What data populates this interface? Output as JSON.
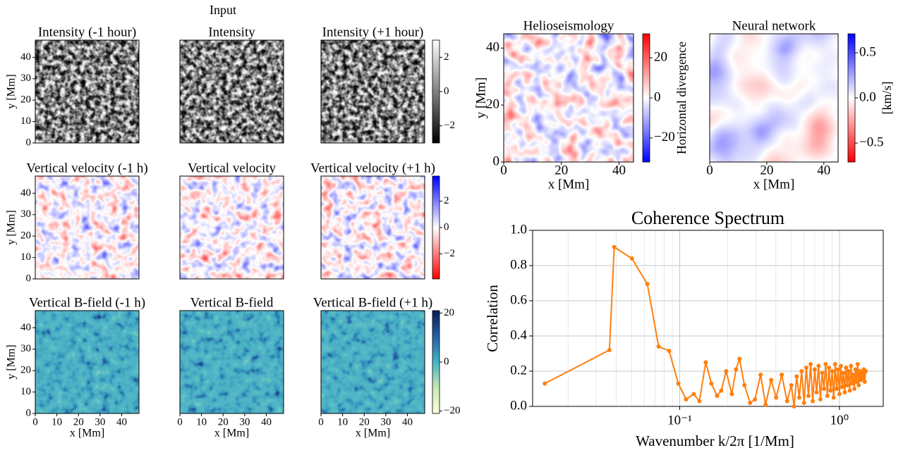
{
  "suptitle": "Input",
  "chart_data": [
    {
      "type": "heatmap",
      "title": "Intensity (-1 hour)",
      "xlim": [
        0,
        48
      ],
      "ylim": [
        0,
        48
      ],
      "yticks": [
        0,
        10,
        20,
        30,
        40
      ],
      "ylabel": "y [Mm]",
      "colormap": "gray"
    },
    {
      "type": "heatmap",
      "title": "Intensity",
      "xlim": [
        0,
        48
      ],
      "ylim": [
        0,
        48
      ],
      "colormap": "gray"
    },
    {
      "type": "heatmap",
      "title": "Intensity (+1 hour)",
      "xlim": [
        0,
        48
      ],
      "ylim": [
        0,
        48
      ],
      "colormap": "gray",
      "clim": [
        -3,
        3
      ],
      "cticks": [
        2,
        0,
        {
          "value": -2,
          "label": "−2"
        }
      ]
    },
    {
      "type": "heatmap",
      "title": "Vertical velocity (-1 h)",
      "xlim": [
        0,
        48
      ],
      "ylim": [
        0,
        48
      ],
      "yticks": [
        0,
        10,
        20,
        30,
        40
      ],
      "ylabel": "y [Mm]",
      "colormap": "bwr_r"
    },
    {
      "type": "heatmap",
      "title": "Vertical velocity",
      "xlim": [
        0,
        48
      ],
      "ylim": [
        0,
        48
      ],
      "colormap": "bwr_r"
    },
    {
      "type": "heatmap",
      "title": "Vertical velocity (+1 h)",
      "xlim": [
        0,
        48
      ],
      "ylim": [
        0,
        48
      ],
      "colormap": "bwr_r",
      "clim": [
        -3.9,
        3.9
      ],
      "cticks": [
        2,
        0,
        {
          "value": -2,
          "label": "−2"
        }
      ]
    },
    {
      "type": "heatmap",
      "title": "Vertical B-field (-1 h)",
      "xlim": [
        0,
        48
      ],
      "ylim": [
        0,
        48
      ],
      "xticks": [
        0,
        10,
        20,
        30,
        40
      ],
      "yticks": [
        0,
        10,
        20,
        30,
        40
      ],
      "xlabel": "x [Mm]",
      "ylabel": "y [Mm]",
      "colormap": "YlGnBu"
    },
    {
      "type": "heatmap",
      "title": "Vertical B-field",
      "xlim": [
        0,
        48
      ],
      "ylim": [
        0,
        48
      ],
      "xticks": [
        0,
        10,
        20,
        30,
        40
      ],
      "xlabel": "x [Mm]",
      "colormap": "YlGnBu"
    },
    {
      "type": "heatmap",
      "title": "Vertical B-field (+1 h)",
      "xlim": [
        0,
        48
      ],
      "ylim": [
        0,
        48
      ],
      "xticks": [
        0,
        10,
        20,
        30,
        40
      ],
      "xlabel": "x [Mm]",
      "colormap": "YlGnBu",
      "clim": [
        -21,
        21
      ],
      "cticks": [
        20,
        0,
        {
          "value": -20,
          "label": "−20"
        }
      ]
    },
    {
      "type": "heatmap",
      "title": "Helioseismology",
      "xlim": [
        0,
        45
      ],
      "ylim": [
        0,
        45
      ],
      "xticks": [
        0,
        20,
        40
      ],
      "yticks": [
        0,
        20,
        40
      ],
      "xlabel": "x [Mm]",
      "ylabel": "y [Mm]",
      "colormap": "bwr",
      "clim": [
        -32,
        32
      ],
      "cticks": [
        20,
        0,
        {
          "value": -20,
          "label": "−20"
        }
      ],
      "clabel": "Horizontal divergence"
    },
    {
      "type": "heatmap",
      "title": "Neural network",
      "xlim": [
        0,
        45
      ],
      "ylim": [
        0,
        45
      ],
      "xticks": [
        0,
        20,
        40
      ],
      "xlabel": "x [Mm]",
      "colormap": "bwr_r",
      "clim": [
        -0.71,
        0.71
      ],
      "cticks": [
        0.5,
        {
          "value": 0,
          "label": "0.0"
        },
        {
          "value": -0.5,
          "label": "−0.5"
        }
      ],
      "clabel": "[km/s]"
    },
    {
      "type": "line",
      "title": "Coherence Spectrum",
      "xlabel": "Wavenumber k/2π [1/Mm]",
      "ylabel": "Correlation",
      "xscale": "log",
      "xlim": [
        0.012,
        1.88
      ],
      "xticks": [
        {
          "value": 0.1,
          "label": "10⁻¹"
        },
        {
          "value": 1,
          "label": "10⁰"
        }
      ],
      "xminorticks": [
        0.02,
        0.03,
        0.04,
        0.05,
        0.06,
        0.07,
        0.08,
        0.09,
        0.2,
        0.3,
        0.4,
        0.5,
        0.6,
        0.7,
        0.8,
        0.9
      ],
      "ylim": [
        0,
        1
      ],
      "yticks": [
        {
          "value": 0,
          "label": "0.0"
        },
        0.2,
        0.4,
        0.6,
        0.8,
        {
          "value": 1,
          "label": "1.0"
        }
      ],
      "grid": true,
      "color": "#ff7f0e",
      "x": [
        0.0143,
        0.0363,
        0.0389,
        0.0502,
        0.0627,
        0.0738,
        0.0859,
        0.098,
        0.1096,
        0.1224,
        0.1328,
        0.1455,
        0.1578,
        0.1712,
        0.182,
        0.1953,
        0.2118,
        0.2251,
        0.2367,
        0.2542,
        0.2758,
        0.296,
        0.3209,
        0.3446,
        0.3737,
        0.4014,
        0.4352,
        0.47,
        0.5,
        0.52,
        0.54,
        0.56,
        0.58,
        0.6,
        0.62,
        0.64,
        0.66,
        0.68,
        0.7,
        0.72,
        0.74,
        0.76,
        0.78,
        0.8,
        0.82,
        0.84,
        0.86,
        0.88,
        0.9,
        0.92,
        0.94,
        0.96,
        0.98,
        1.0,
        1.02,
        1.04,
        1.06,
        1.08,
        1.1,
        1.12,
        1.14,
        1.16,
        1.18,
        1.2,
        1.22,
        1.24,
        1.26,
        1.28,
        1.3,
        1.32,
        1.34,
        1.36,
        1.38,
        1.4,
        1.42,
        1.44,
        1.46
      ],
      "values": [
        0.13,
        0.32,
        0.905,
        0.84,
        0.695,
        0.34,
        0.315,
        0.13,
        0.04,
        0.07,
        0.03,
        0.25,
        0.13,
        0.06,
        0.09,
        0.2,
        0.07,
        0.21,
        0.27,
        0.12,
        0.02,
        0.04,
        0.18,
        0.01,
        0.15,
        0.05,
        0.18,
        0.03,
        0.12,
        0.0,
        0.17,
        0.05,
        0.2,
        0.02,
        0.22,
        0.06,
        0.24,
        0.03,
        0.21,
        0.08,
        0.23,
        0.04,
        0.19,
        0.1,
        0.24,
        0.06,
        0.22,
        0.09,
        0.2,
        0.05,
        0.24,
        0.1,
        0.21,
        0.07,
        0.23,
        0.11,
        0.19,
        0.08,
        0.22,
        0.12,
        0.2,
        0.09,
        0.23,
        0.13,
        0.18,
        0.1,
        0.21,
        0.14,
        0.24,
        0.12,
        0.2,
        0.15,
        0.19,
        0.16,
        0.21,
        0.14,
        0.2
      ]
    }
  ]
}
